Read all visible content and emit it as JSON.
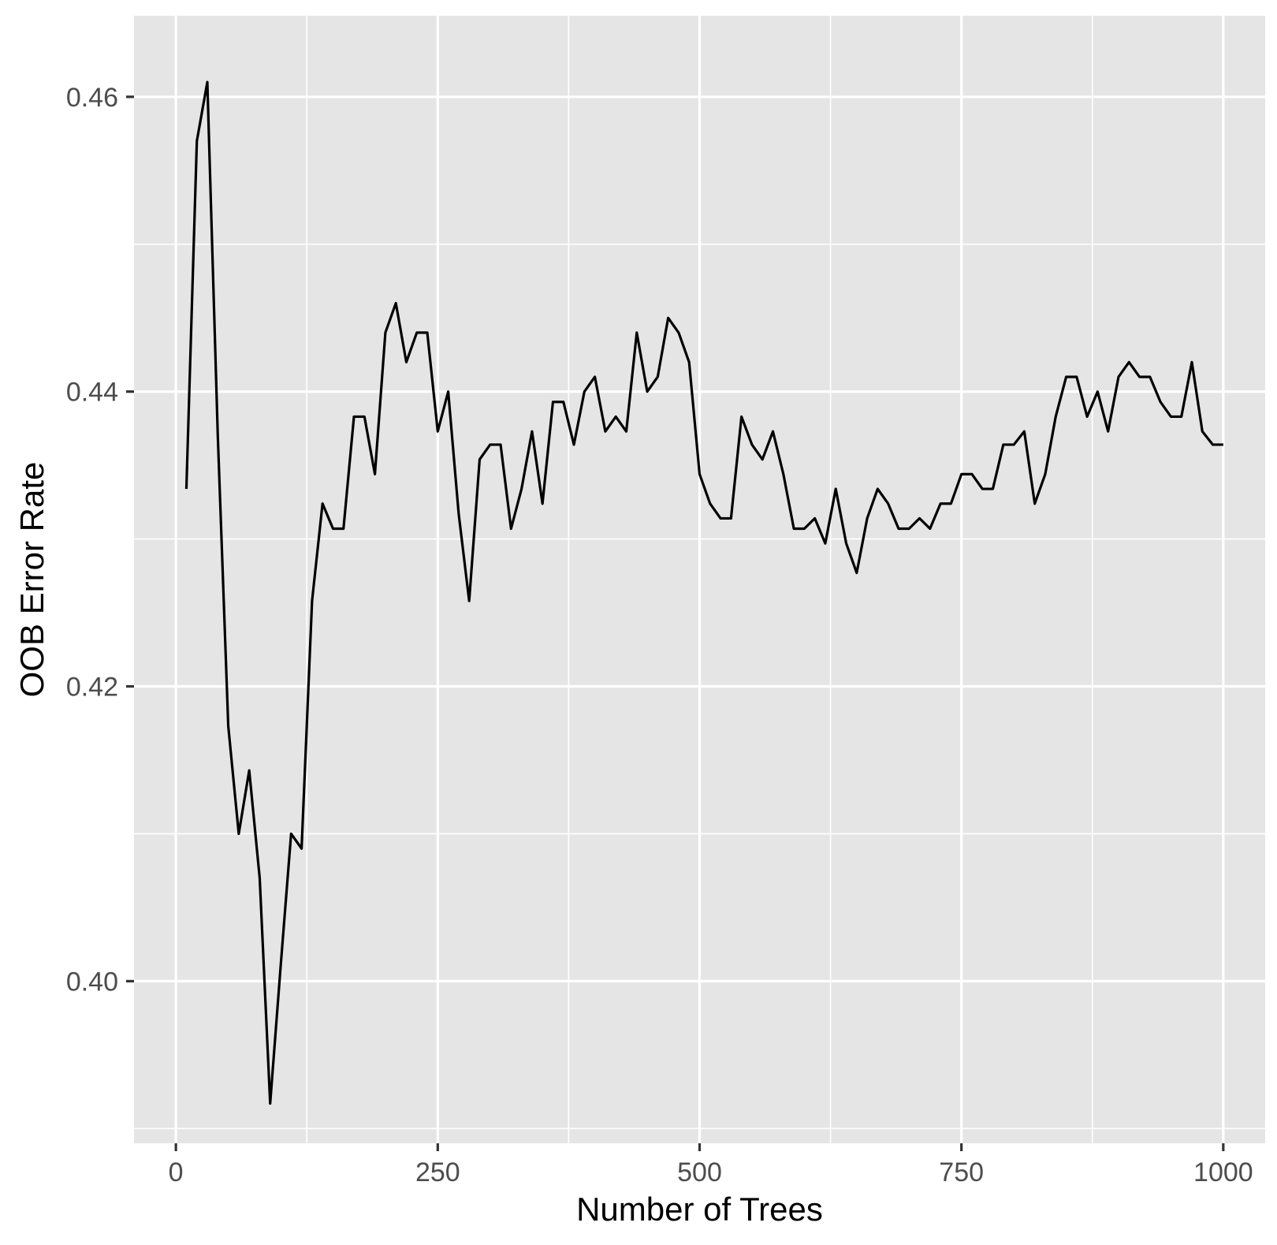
{
  "chart_data": {
    "type": "line",
    "title": "",
    "xlabel": "Number of Trees",
    "ylabel": "OOB Error Rate",
    "xlim": [
      -40,
      1040
    ],
    "ylim": [
      0.389,
      0.4655
    ],
    "x_ticks": [
      {
        "value": 0,
        "label": "0"
      },
      {
        "value": 250,
        "label": "250"
      },
      {
        "value": 500,
        "label": "500"
      },
      {
        "value": 750,
        "label": "750"
      },
      {
        "value": 1000,
        "label": "1000"
      }
    ],
    "y_ticks": [
      {
        "value": 0.4,
        "label": "0.40"
      },
      {
        "value": 0.42,
        "label": "0.42"
      },
      {
        "value": 0.44,
        "label": "0.44"
      },
      {
        "value": 0.46,
        "label": "0.46"
      }
    ],
    "x_minor": [
      125,
      375,
      625,
      875
    ],
    "y_minor": [
      0.39,
      0.41,
      0.43,
      0.45
    ],
    "grid": true,
    "legend": "none",
    "series": [
      {
        "name": "OOB Error Rate",
        "color": "#000000",
        "x": [
          10,
          20,
          30,
          40,
          50,
          60,
          70,
          80,
          90,
          100,
          110,
          120,
          130,
          140,
          150,
          160,
          170,
          180,
          190,
          200,
          210,
          220,
          230,
          240,
          250,
          260,
          270,
          280,
          290,
          300,
          310,
          320,
          330,
          340,
          350,
          360,
          370,
          380,
          390,
          400,
          410,
          420,
          430,
          440,
          450,
          460,
          470,
          480,
          490,
          500,
          510,
          520,
          530,
          540,
          550,
          560,
          570,
          580,
          590,
          600,
          610,
          620,
          630,
          640,
          650,
          660,
          670,
          680,
          690,
          700,
          710,
          720,
          730,
          740,
          750,
          760,
          770,
          780,
          790,
          800,
          810,
          820,
          830,
          840,
          850,
          860,
          870,
          880,
          890,
          900,
          910,
          920,
          930,
          940,
          950,
          960,
          970,
          980,
          990,
          1000
        ],
        "values": [
          0.4334,
          0.457,
          0.461,
          0.437,
          0.4173,
          0.41,
          0.4143,
          0.407,
          0.3917,
          0.401,
          0.41,
          0.409,
          0.4258,
          0.4324,
          0.4307,
          0.4307,
          0.4383,
          0.4383,
          0.4344,
          0.444,
          0.446,
          0.442,
          0.444,
          0.444,
          0.4373,
          0.44,
          0.4317,
          0.4258,
          0.4354,
          0.4364,
          0.4364,
          0.4307,
          0.4334,
          0.4373,
          0.4324,
          0.4393,
          0.4393,
          0.4364,
          0.44,
          0.441,
          0.4373,
          0.4383,
          0.4373,
          0.444,
          0.44,
          0.441,
          0.445,
          0.444,
          0.442,
          0.4344,
          0.4324,
          0.4314,
          0.4314,
          0.4383,
          0.4364,
          0.4354,
          0.4373,
          0.4344,
          0.4307,
          0.4307,
          0.4314,
          0.4297,
          0.4334,
          0.4297,
          0.4277,
          0.4314,
          0.4334,
          0.4324,
          0.4307,
          0.4307,
          0.4314,
          0.4307,
          0.4324,
          0.4324,
          0.4344,
          0.4344,
          0.4334,
          0.4334,
          0.4364,
          0.4364,
          0.4373,
          0.4324,
          0.4344,
          0.4383,
          0.441,
          0.441,
          0.4383,
          0.44,
          0.4373,
          0.441,
          0.442,
          0.441,
          0.441,
          0.4393,
          0.4383,
          0.4383,
          0.442,
          0.4373,
          0.4364,
          0.4364
        ]
      }
    ]
  }
}
